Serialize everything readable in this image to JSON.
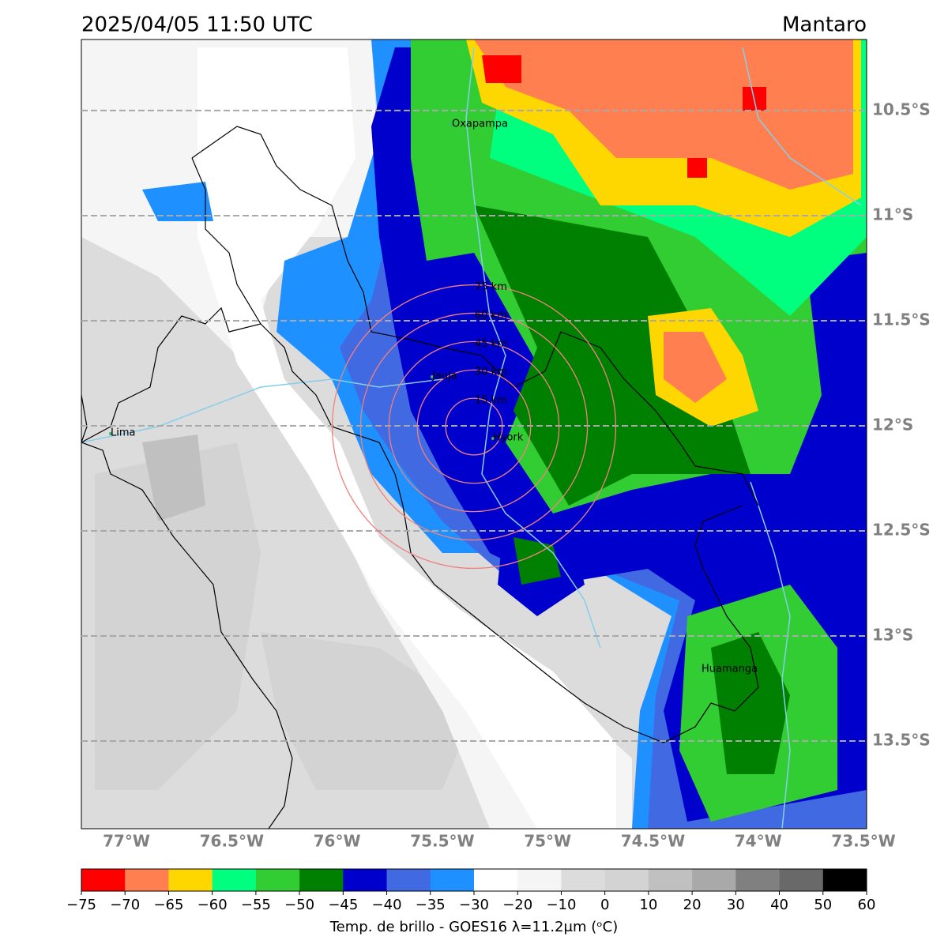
{
  "header": {
    "title_left": "2025/04/05 11:50 UTC",
    "title_right": "Mantaro"
  },
  "map": {
    "xlim": [
      -77.214,
      -73.485
    ],
    "ylim": [
      -13.917,
      -10.162
    ],
    "xticks": [
      {
        "value": -77,
        "label": "77°W"
      },
      {
        "value": -76.5,
        "label": "76.5°W"
      },
      {
        "value": -76,
        "label": "76°W"
      },
      {
        "value": -75.5,
        "label": "75.5°W"
      },
      {
        "value": -75,
        "label": "75°W"
      },
      {
        "value": -74.5,
        "label": "74.5°W"
      },
      {
        "value": -74,
        "label": "74°W"
      },
      {
        "value": -73.5,
        "label": "73.5°W"
      }
    ],
    "yticks": [
      {
        "value": -10.5,
        "label": "10.5°S"
      },
      {
        "value": -11,
        "label": "11°S"
      },
      {
        "value": -11.5,
        "label": "11.5°S"
      },
      {
        "value": -12,
        "label": "12°S"
      },
      {
        "value": -12.5,
        "label": "12.5°S"
      },
      {
        "value": -13,
        "label": "13°S"
      },
      {
        "value": -13.5,
        "label": "13.5°S"
      }
    ],
    "grid": true,
    "places": [
      "Oxapampa",
      "Jauja",
      "Hyork",
      "Lima",
      "Huamanga"
    ],
    "rings": [
      {
        "value": 15,
        "label": "15 km"
      },
      {
        "value": 30,
        "label": "30 km"
      },
      {
        "value": 45,
        "label": "45 km"
      },
      {
        "value": 60,
        "label": "60 km"
      },
      {
        "value": 75,
        "label": "75 km"
      }
    ]
  },
  "colorbar": {
    "ticks": [
      {
        "value": -75,
        "label": "−75"
      },
      {
        "value": -70,
        "label": "−70"
      },
      {
        "value": -65,
        "label": "−65"
      },
      {
        "value": -60,
        "label": "−60"
      },
      {
        "value": -55,
        "label": "−55"
      },
      {
        "value": -50,
        "label": "−50"
      },
      {
        "value": -45,
        "label": "−45"
      },
      {
        "value": -40,
        "label": "−40"
      },
      {
        "value": -35,
        "label": "−35"
      },
      {
        "value": -30,
        "label": "−30"
      },
      {
        "value": -20,
        "label": "−20"
      },
      {
        "value": -10,
        "label": "−10"
      },
      0,
      10,
      20,
      30,
      40,
      50,
      60
    ],
    "colors": [
      "#ff0000",
      "#ff7f50",
      "#ffd700",
      "#00ff7f",
      "#32cd32",
      "#008000",
      "#0000cd",
      "#4169e1",
      "#1e90ff",
      "#ffffff",
      "#f5f5f5",
      "#dcdcdc",
      "#d3d3d3",
      "#c0c0c0",
      "#a9a9a9",
      "#808080",
      "#696969",
      "#000000"
    ],
    "label": "Temp. de brillo - GOES16 λ=11.2μm (ᵒC)"
  }
}
